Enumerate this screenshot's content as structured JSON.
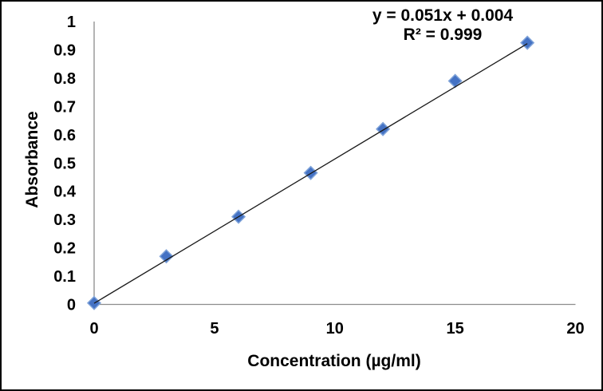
{
  "frame": {
    "background": "#ffffff",
    "border_color": "#000000"
  },
  "chart_data": {
    "type": "scatter",
    "title": "",
    "xlabel": "Concentration (µg/ml)",
    "ylabel": "Absorbance",
    "points": [
      {
        "x": 0,
        "y": 0.005
      },
      {
        "x": 3,
        "y": 0.17
      },
      {
        "x": 6,
        "y": 0.31
      },
      {
        "x": 9,
        "y": 0.465
      },
      {
        "x": 12,
        "y": 0.62
      },
      {
        "x": 15,
        "y": 0.79
      },
      {
        "x": 18,
        "y": 0.925
      }
    ],
    "xlim": [
      0,
      20
    ],
    "ylim": [
      0,
      1
    ],
    "xticks": [
      0,
      5,
      10,
      15,
      20
    ],
    "xtick_labels": [
      "0",
      "5",
      "10",
      "15",
      "20"
    ],
    "yticks": [
      0,
      0.1,
      0.2,
      0.3,
      0.4,
      0.5,
      0.6,
      0.7,
      0.8,
      0.9,
      1
    ],
    "ytick_labels": [
      "0",
      "0.1",
      "0.2",
      "0.3",
      "0.4",
      "0.5",
      "0.6",
      "0.7",
      "0.8",
      "0.9",
      "1"
    ],
    "grid": false,
    "legend": null,
    "trendline": {
      "slope": 0.051,
      "intercept": 0.004,
      "x_start": 0,
      "x_end": 18,
      "color": "#1a1a1a"
    },
    "annotation": {
      "equation": "y = 0.051x + 0.004",
      "r_squared": "R² = 0.999"
    },
    "marker": {
      "shape": "diamond",
      "fill": "#4472C4",
      "edge": "#7FA3D9",
      "size": 16
    },
    "axis_color": "#8C8C8C"
  }
}
